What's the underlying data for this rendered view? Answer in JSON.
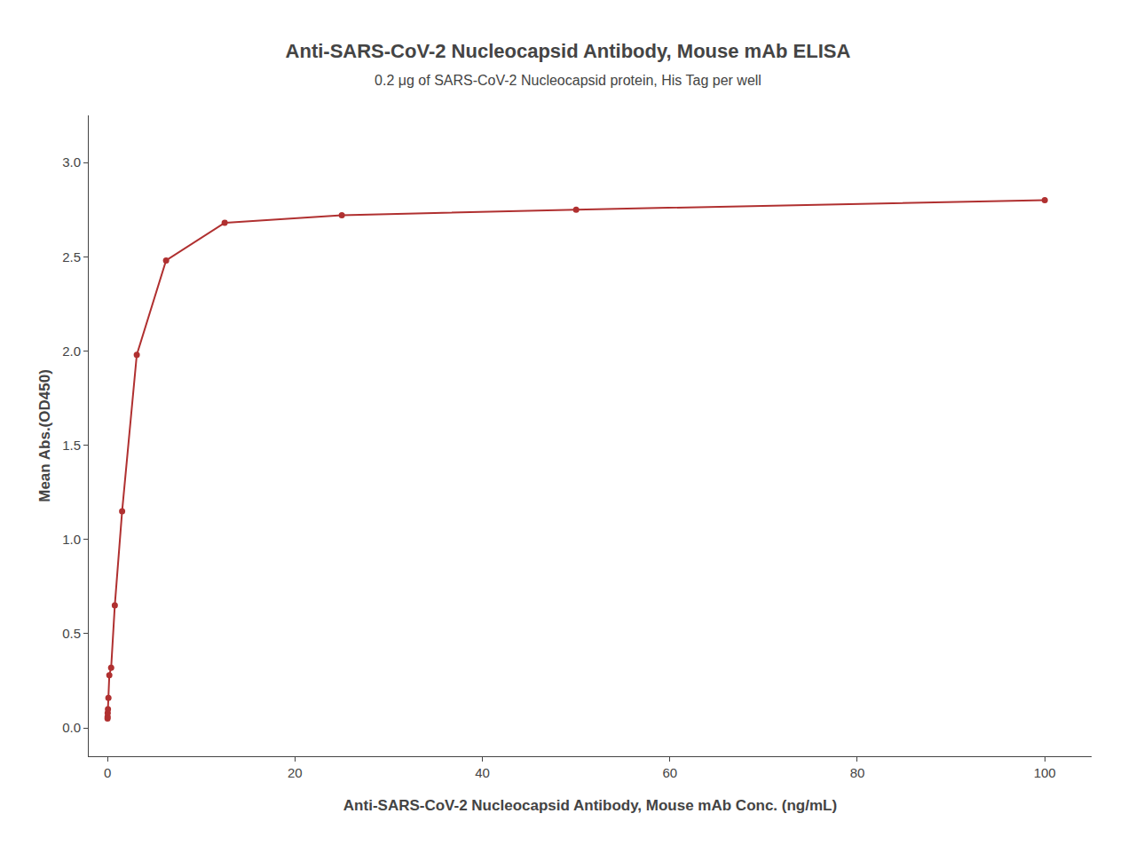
{
  "chart_data": {
    "type": "line",
    "title": "Anti-SARS-CoV-2 Nucleocapsid Antibody, Mouse mAb ELISA",
    "subtitle": "0.2 μg of SARS-CoV-2 Nucleocapsid protein, His Tag per well",
    "xlabel": "Anti-SARS-CoV-2 Nucleocapsid Antibody, Mouse mAb Conc. (ng/mL)",
    "ylabel": "Mean Abs.(OD450)",
    "x": [
      0.006,
      0.012,
      0.024,
      0.049,
      0.098,
      0.195,
      0.39,
      0.78,
      1.56,
      3.125,
      6.25,
      12.5,
      25,
      50,
      100
    ],
    "values": [
      0.05,
      0.06,
      0.08,
      0.1,
      0.16,
      0.28,
      0.32,
      0.65,
      1.15,
      1.98,
      2.48,
      2.68,
      2.72,
      2.75,
      2.8
    ],
    "color": "#b03030",
    "marker": "circle",
    "xlim": [
      -2,
      105
    ],
    "ylim": [
      -0.15,
      3.25
    ],
    "xticks": [
      0,
      20,
      40,
      60,
      80,
      100
    ],
    "yticks": [
      {
        "value": 0.0,
        "label": "0.0"
      },
      0.5,
      {
        "value": 1.0,
        "label": "1.0"
      },
      1.5,
      {
        "value": 2.0,
        "label": "2.0"
      },
      2.5,
      {
        "value": 3.0,
        "label": "3.0"
      }
    ],
    "grid": false
  }
}
